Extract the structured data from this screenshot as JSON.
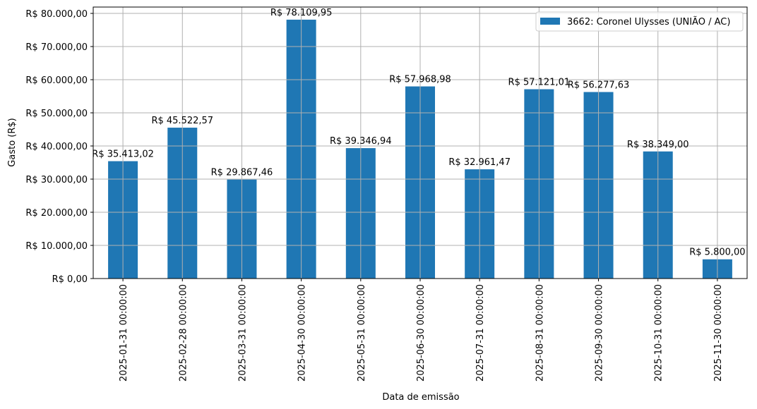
{
  "chart_data": {
    "type": "bar",
    "title": "",
    "xlabel": "Data de emissão",
    "ylabel": "Gasto (R$)",
    "ylim": [
      0,
      82000
    ],
    "yticks": [
      0,
      10000,
      20000,
      30000,
      40000,
      50000,
      60000,
      70000,
      80000
    ],
    "ytick_labels": [
      "R$ 0,00",
      "R$ 10.000,00",
      "R$ 20.000,00",
      "R$ 30.000,00",
      "R$ 40.000,00",
      "R$ 50.000,00",
      "R$ 60.000,00",
      "R$ 70.000,00",
      "R$ 80.000,00"
    ],
    "grid": true,
    "legend_position": "upper right",
    "categories": [
      "2025-01-31 00:00:00",
      "2025-02-28 00:00:00",
      "2025-03-31 00:00:00",
      "2025-04-30 00:00:00",
      "2025-05-31 00:00:00",
      "2025-06-30 00:00:00",
      "2025-07-31 00:00:00",
      "2025-08-31 00:00:00",
      "2025-09-30 00:00:00",
      "2025-10-31 00:00:00",
      "2025-11-30 00:00:00"
    ],
    "series": [
      {
        "name": "3662: Coronel Ulysses (UNIÃO / AC)",
        "color": "#1f77b4",
        "values": [
          35413.02,
          45522.57,
          29867.46,
          78109.95,
          39346.94,
          57968.98,
          32961.47,
          57121.01,
          56277.63,
          38349.0,
          5800.0
        ],
        "labels": [
          "R$ 35.413,02",
          "R$ 45.522,57",
          "R$ 29.867,46",
          "R$ 78.109,95",
          "R$ 39.346,94",
          "R$ 57.968,98",
          "R$ 32.961,47",
          "R$ 57.121,01",
          "R$ 56.277,63",
          "R$ 38.349,00",
          "R$ 5.800,00"
        ]
      }
    ]
  },
  "colors": {
    "bar": "#1f77b4",
    "grid": "#b0b0b0",
    "axis": "#000000",
    "legend_border": "#cccccc"
  }
}
